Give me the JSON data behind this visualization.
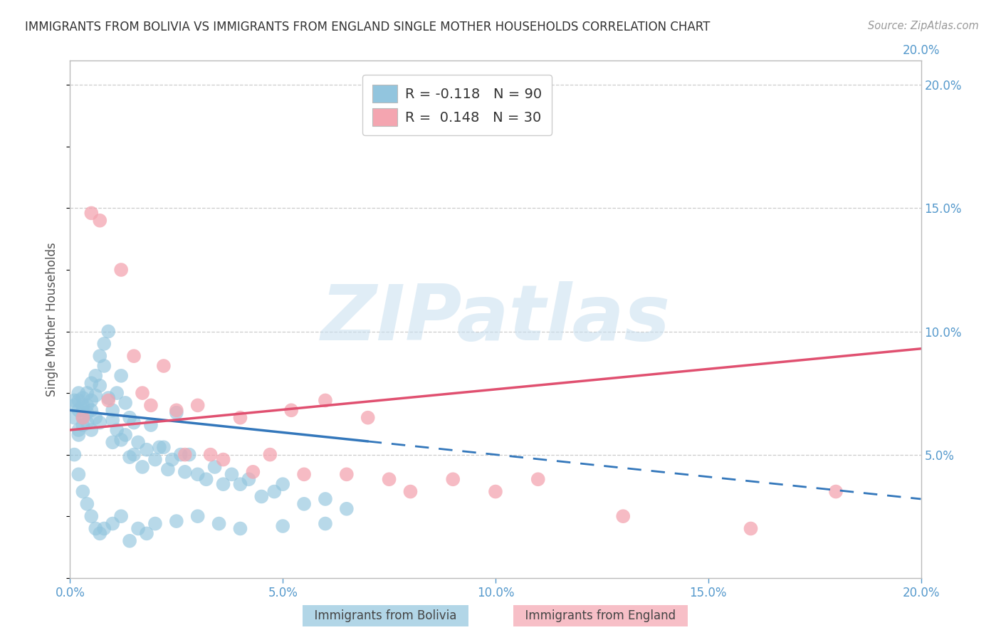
{
  "title": "IMMIGRANTS FROM BOLIVIA VS IMMIGRANTS FROM ENGLAND SINGLE MOTHER HOUSEHOLDS CORRELATION CHART",
  "source": "Source: ZipAtlas.com",
  "ylabel": "Single Mother Households",
  "xlim": [
    0.0,
    0.2
  ],
  "ylim": [
    0.0,
    0.21
  ],
  "xticks": [
    0.0,
    0.05,
    0.1,
    0.15,
    0.2
  ],
  "yticks_right": [
    0.05,
    0.1,
    0.15,
    0.2
  ],
  "bolivia_color": "#92C5DE",
  "england_color": "#F4A5B0",
  "bolivia_label": "Immigrants from Bolivia",
  "england_label": "Immigrants from England",
  "bolivia_R": "-0.118",
  "bolivia_N": "90",
  "england_R": "0.148",
  "england_N": "30",
  "trend_bolivia_solid_end": 0.07,
  "trend_bolivia_slope": -0.18,
  "trend_bolivia_intercept": 0.068,
  "trend_england_slope": 0.165,
  "trend_england_intercept": 0.06,
  "watermark": "ZIPatlas",
  "background_color": "#ffffff",
  "grid_color": "#cccccc",
  "axis_label_color": "#5599cc",
  "title_color": "#333333",
  "bolivia_x": [
    0.001,
    0.001,
    0.001,
    0.002,
    0.002,
    0.002,
    0.002,
    0.002,
    0.003,
    0.003,
    0.003,
    0.003,
    0.003,
    0.004,
    0.004,
    0.004,
    0.004,
    0.005,
    0.005,
    0.005,
    0.005,
    0.006,
    0.006,
    0.006,
    0.007,
    0.007,
    0.007,
    0.008,
    0.008,
    0.009,
    0.009,
    0.01,
    0.01,
    0.01,
    0.011,
    0.011,
    0.012,
    0.012,
    0.013,
    0.013,
    0.014,
    0.014,
    0.015,
    0.015,
    0.016,
    0.017,
    0.018,
    0.019,
    0.02,
    0.021,
    0.022,
    0.023,
    0.024,
    0.025,
    0.026,
    0.027,
    0.028,
    0.03,
    0.032,
    0.034,
    0.036,
    0.038,
    0.04,
    0.042,
    0.045,
    0.048,
    0.05,
    0.055,
    0.06,
    0.065,
    0.001,
    0.002,
    0.003,
    0.004,
    0.005,
    0.006,
    0.007,
    0.008,
    0.01,
    0.012,
    0.014,
    0.016,
    0.018,
    0.02,
    0.025,
    0.03,
    0.035,
    0.04,
    0.05,
    0.06
  ],
  "bolivia_y": [
    0.065,
    0.07,
    0.072,
    0.068,
    0.072,
    0.075,
    0.06,
    0.058,
    0.068,
    0.07,
    0.065,
    0.073,
    0.062,
    0.07,
    0.075,
    0.063,
    0.067,
    0.068,
    0.072,
    0.079,
    0.06,
    0.082,
    0.074,
    0.065,
    0.09,
    0.078,
    0.063,
    0.095,
    0.086,
    0.1,
    0.073,
    0.055,
    0.064,
    0.068,
    0.06,
    0.075,
    0.082,
    0.056,
    0.058,
    0.071,
    0.065,
    0.049,
    0.063,
    0.05,
    0.055,
    0.045,
    0.052,
    0.062,
    0.048,
    0.053,
    0.053,
    0.044,
    0.048,
    0.067,
    0.05,
    0.043,
    0.05,
    0.042,
    0.04,
    0.045,
    0.038,
    0.042,
    0.038,
    0.04,
    0.033,
    0.035,
    0.038,
    0.03,
    0.032,
    0.028,
    0.05,
    0.042,
    0.035,
    0.03,
    0.025,
    0.02,
    0.018,
    0.02,
    0.022,
    0.025,
    0.015,
    0.02,
    0.018,
    0.022,
    0.023,
    0.025,
    0.022,
    0.02,
    0.021,
    0.022
  ],
  "england_x": [
    0.003,
    0.005,
    0.007,
    0.009,
    0.012,
    0.015,
    0.017,
    0.019,
    0.022,
    0.025,
    0.027,
    0.03,
    0.033,
    0.036,
    0.04,
    0.043,
    0.047,
    0.052,
    0.055,
    0.06,
    0.065,
    0.07,
    0.075,
    0.08,
    0.09,
    0.1,
    0.11,
    0.13,
    0.16,
    0.18
  ],
  "england_y": [
    0.065,
    0.148,
    0.145,
    0.072,
    0.125,
    0.09,
    0.075,
    0.07,
    0.086,
    0.068,
    0.05,
    0.07,
    0.05,
    0.048,
    0.065,
    0.043,
    0.05,
    0.068,
    0.042,
    0.072,
    0.042,
    0.065,
    0.04,
    0.035,
    0.04,
    0.035,
    0.04,
    0.025,
    0.02,
    0.035
  ]
}
